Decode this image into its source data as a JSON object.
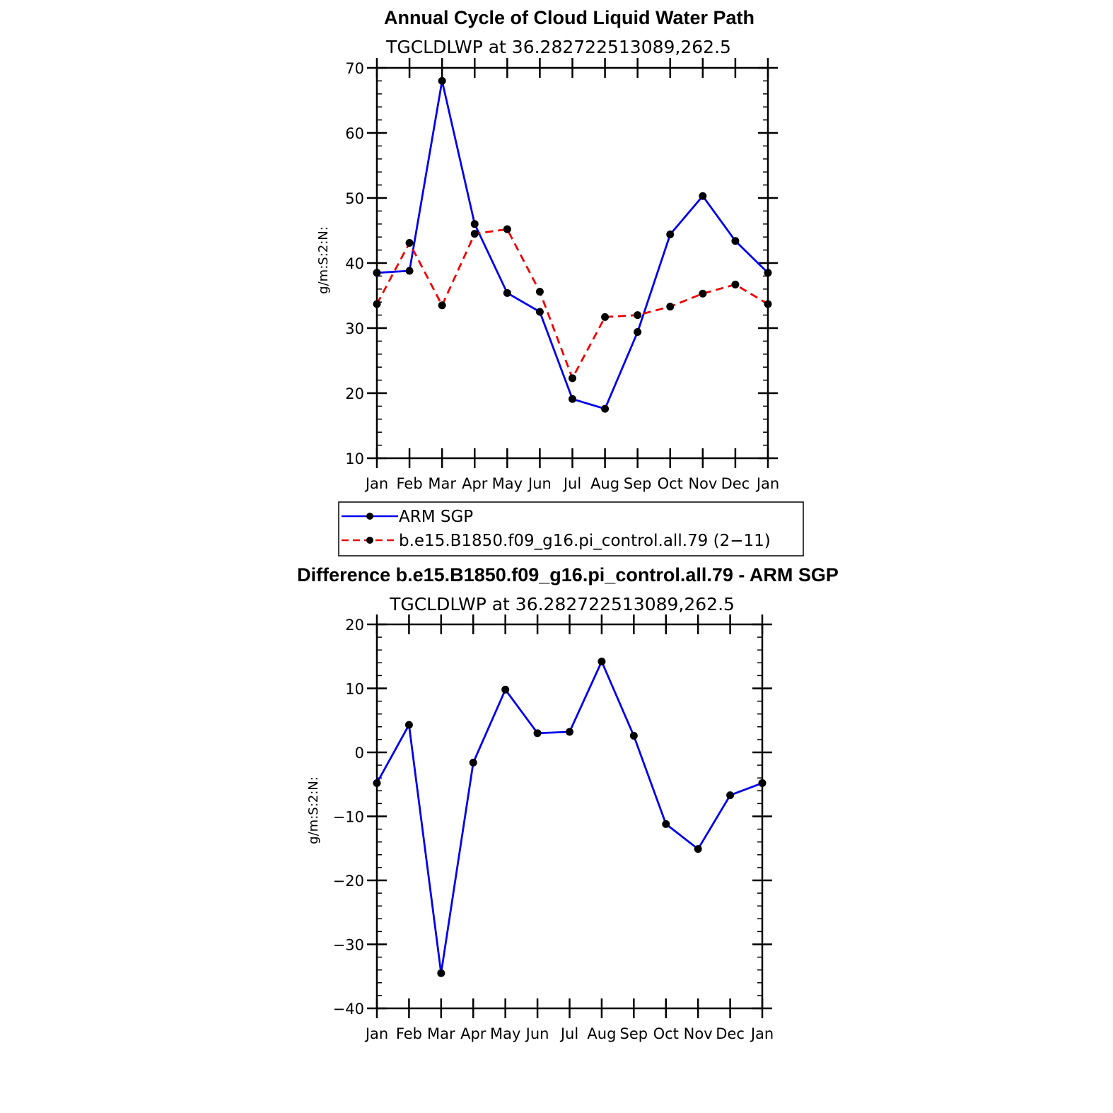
{
  "chart_data": [
    {
      "type": "line",
      "title": "Annual Cycle of Cloud Liquid Water Path",
      "subtitle": "TGCLDLWP  at  36.282722513089,262.5",
      "ylabel": "g/m:S:2:N:",
      "xlabel": "",
      "ylim": [
        10,
        70
      ],
      "yticks": [
        "10",
        "20",
        "30",
        "40",
        "50",
        "60",
        "70"
      ],
      "categories": [
        "Jan",
        "Feb",
        "Mar",
        "Apr",
        "May",
        "Jun",
        "Jul",
        "Aug",
        "Sep",
        "Oct",
        "Nov",
        "Dec",
        "Jan"
      ],
      "series": [
        {
          "name": "ARM  SGP",
          "color": "#0000ee",
          "dash": "solid",
          "values": [
            38.5,
            38.8,
            68.0,
            46.0,
            35.4,
            32.5,
            19.1,
            17.6,
            29.4,
            44.4,
            50.3,
            43.4,
            38.5
          ]
        },
        {
          "name": "b.e15.B1850.f09_g16.pi_control.all.79  (2−11)",
          "color": "#ee0000",
          "dash": "dashed",
          "values": [
            33.7,
            43.1,
            33.5,
            44.5,
            45.2,
            35.6,
            22.3,
            31.7,
            32.0,
            33.3,
            35.3,
            36.7,
            33.7
          ]
        }
      ],
      "legend": "below"
    },
    {
      "type": "line",
      "title": "Difference b.e15.B1850.f09_g16.pi_control.all.79 - ARM SGP",
      "subtitle": "TGCLDLWP  at  36.282722513089,262.5",
      "ylabel": "g/m:S:2:N:",
      "xlabel": "",
      "ylim": [
        -40,
        20
      ],
      "yticks": [
        "−40",
        "−30",
        "−20",
        "−10",
        "0",
        "10",
        "20"
      ],
      "categories": [
        "Jan",
        "Feb",
        "Mar",
        "Apr",
        "May",
        "Jun",
        "Jul",
        "Aug",
        "Sep",
        "Oct",
        "Nov",
        "Dec",
        "Jan"
      ],
      "series": [
        {
          "name": "Difference",
          "color": "#0000ee",
          "dash": "solid",
          "values": [
            -4.8,
            4.3,
            -34.5,
            -1.6,
            9.8,
            3.0,
            3.2,
            14.2,
            2.6,
            -11.2,
            -15.1,
            -6.7,
            -4.8
          ]
        }
      ]
    }
  ]
}
